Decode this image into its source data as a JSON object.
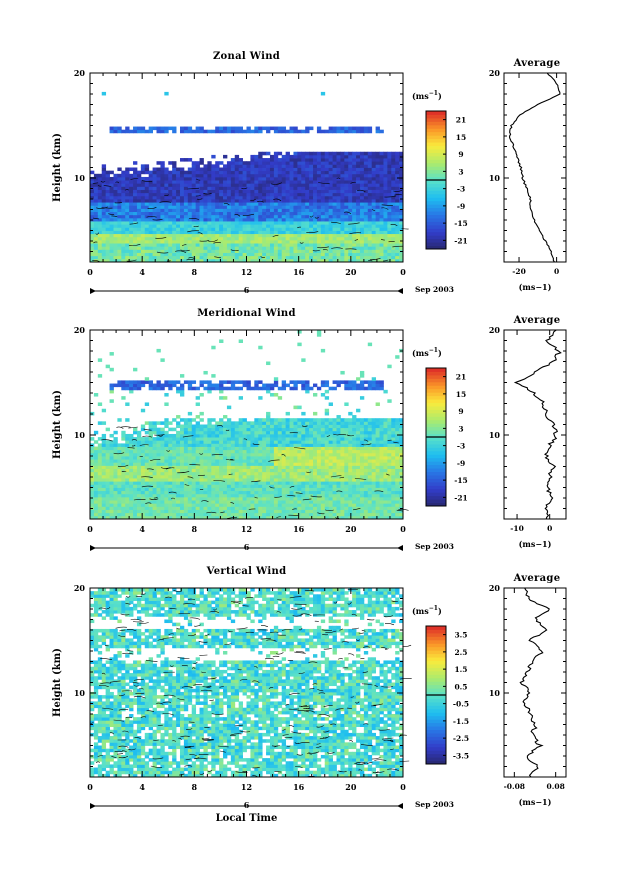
{
  "chart_data": [
    {
      "type": "heatmap",
      "title": "Zonal Wind",
      "ylabel": "Height (km)",
      "ylim": [
        2,
        20
      ],
      "yticks": [
        10,
        20
      ],
      "xlim": [
        0,
        24
      ],
      "xticks": [
        "0",
        "4",
        "8",
        "12",
        "16",
        "20",
        "0"
      ],
      "date_marker": "6",
      "date_text": "Sep 2003",
      "colorbar": {
        "unit_base": "(ms",
        "unit_exp": "−1",
        "unit_close": ")",
        "ticks": [
          "21",
          "15",
          "9",
          "3",
          "-3",
          "-9",
          "-15",
          "-21"
        ],
        "range": [
          -24,
          24
        ]
      },
      "profile": {
        "title": "Average",
        "xlabel": "(ms−1)",
        "xticks": [
          "-20",
          "0"
        ],
        "xlim": [
          -28,
          5
        ],
        "yticks": [
          "10",
          "20"
        ],
        "heights": [
          2,
          3,
          4,
          5,
          6,
          7,
          8,
          9,
          10,
          11,
          12,
          13,
          14,
          15,
          16,
          17,
          18,
          19,
          20
        ],
        "values": [
          -1,
          -3,
          -6,
          -9,
          -12,
          -14,
          -14,
          -16,
          -18,
          -19,
          -21,
          -23,
          -25,
          -24,
          -20,
          -10,
          2,
          0,
          -5
        ]
      }
    },
    {
      "type": "heatmap",
      "title": "Meridional Wind",
      "ylabel": "Height (km)",
      "ylim": [
        2,
        20
      ],
      "yticks": [
        10,
        20
      ],
      "xlim": [
        0,
        24
      ],
      "xticks": [
        "0",
        "4",
        "8",
        "12",
        "16",
        "20",
        "0"
      ],
      "date_marker": "6",
      "date_text": "Sep 2003",
      "colorbar": {
        "unit_base": "(ms",
        "unit_exp": "−1",
        "unit_close": ")",
        "ticks": [
          "21",
          "15",
          "9",
          "3",
          "-3",
          "-9",
          "-15",
          "-21"
        ],
        "range": [
          -24,
          24
        ]
      },
      "profile": {
        "title": "Average",
        "xlabel": "(ms−1)",
        "xticks": [
          "-10",
          "0"
        ],
        "xlim": [
          -14,
          5
        ],
        "yticks": [
          "10",
          "20"
        ],
        "heights": [
          2,
          3,
          4,
          5,
          6,
          7,
          8,
          9,
          10,
          11,
          12,
          13,
          14,
          15,
          16,
          17,
          18,
          19,
          20
        ],
        "values": [
          -1,
          -1,
          1,
          -1,
          0,
          1,
          -1,
          0,
          2,
          1,
          -1,
          -2,
          -5,
          -10,
          -4,
          1,
          3,
          -1,
          2
        ]
      }
    },
    {
      "type": "heatmap",
      "title": "Vertical Wind",
      "ylabel": "Height (km)",
      "xlabel": "Local Time",
      "ylim": [
        2,
        20
      ],
      "yticks": [
        10,
        20
      ],
      "xlim": [
        0,
        24
      ],
      "xticks": [
        "0",
        "4",
        "8",
        "12",
        "16",
        "20",
        "0"
      ],
      "date_marker": "6",
      "date_text": "Sep 2003",
      "colorbar": {
        "unit_base": "(ms",
        "unit_exp": "−1",
        "unit_close": ")",
        "ticks": [
          "3.5",
          "2.5",
          "1.5",
          "0.5",
          "-0.5",
          "-1.5",
          "-2.5",
          "-3.5"
        ],
        "range": [
          -4,
          4
        ]
      },
      "profile": {
        "title": "Average",
        "xlabel": "(ms−1)",
        "xticks": [
          "-0.08",
          "0.08"
        ],
        "xlim": [
          -0.12,
          0.12
        ],
        "yticks": [
          "10",
          "20"
        ],
        "heights": [
          2,
          3,
          4,
          5,
          6,
          7,
          8,
          9,
          10,
          11,
          12,
          13,
          14,
          15,
          16,
          17,
          18,
          19,
          20
        ],
        "values": [
          -0.02,
          0.01,
          -0.03,
          0.02,
          -0.01,
          0.0,
          -0.02,
          -0.04,
          -0.02,
          -0.05,
          -0.03,
          -0.01,
          0.03,
          -0.02,
          0.05,
          0.0,
          0.06,
          -0.03,
          -0.04
        ]
      }
    }
  ]
}
